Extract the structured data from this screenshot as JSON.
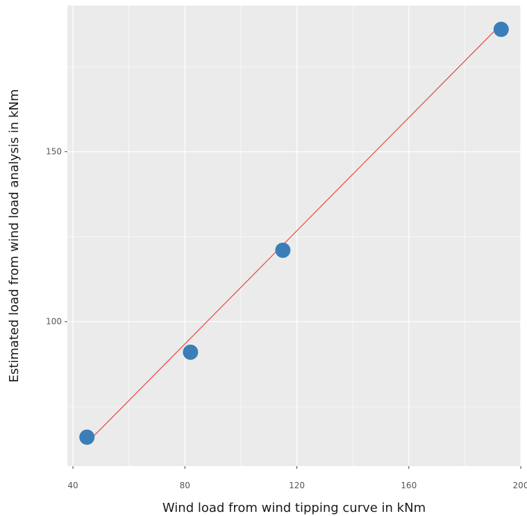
{
  "chart_data": {
    "type": "scatter",
    "title": "",
    "xlabel": "Wind load from wind tipping curve in kNm",
    "ylabel": "Estimated load from wind load analysis in kNm",
    "xlim": [
      38,
      200
    ],
    "ylim": [
      57.5,
      193
    ],
    "x_ticks": [
      40,
      80,
      120,
      160,
      200
    ],
    "y_ticks": [
      100,
      150
    ],
    "x_minor_grid": [
      60,
      100,
      140,
      180
    ],
    "y_minor_grid": [
      75,
      125,
      175
    ],
    "grid": true,
    "background": "#EBEBEB",
    "points": [
      {
        "x": 45,
        "y": 66
      },
      {
        "x": 82,
        "y": 91
      },
      {
        "x": 115,
        "y": 121
      },
      {
        "x": 193,
        "y": 186
      }
    ],
    "point_color": "#3A7DB8",
    "fit_line": {
      "x": [
        45,
        193
      ],
      "y": [
        64.3,
        187.5
      ],
      "color": "#E8473A"
    }
  }
}
